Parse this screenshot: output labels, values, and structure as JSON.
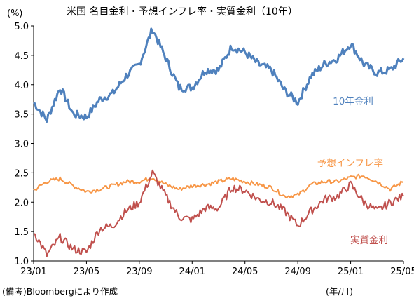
{
  "chart_data": {
    "type": "line",
    "title": "米国 名目金利・予想インフレ率・実質金利（10年）",
    "ylabel": "(%)",
    "xlabel": "(年/月)",
    "note": "(備考)Bloombergにより作成",
    "ylim": [
      1.0,
      5.0
    ],
    "yticks": [
      "1.0",
      "1.5",
      "2.0",
      "2.5",
      "3.0",
      "3.5",
      "4.0",
      "4.5",
      "5.0"
    ],
    "xticks": [
      "23/01",
      "23/05",
      "23/09",
      "24/01",
      "24/05",
      "24/09",
      "25/01",
      "25/05"
    ],
    "grid": false,
    "series": [
      {
        "name": "10年金利",
        "color": "#4f81bd",
        "x": [
          "23/01",
          "23/02",
          "23/03",
          "23/04",
          "23/05",
          "23/06",
          "23/07",
          "23/08",
          "23/09",
          "23/10",
          "23/11",
          "23/12",
          "24/01",
          "24/02",
          "24/03",
          "24/04",
          "24/05",
          "24/06",
          "24/07",
          "24/08",
          "24/09",
          "24/10",
          "24/11",
          "24/12",
          "25/01",
          "25/02",
          "25/03",
          "25/04",
          "25/05"
        ],
        "values": [
          3.7,
          3.4,
          3.95,
          3.5,
          3.45,
          3.75,
          3.85,
          4.15,
          4.35,
          4.95,
          4.45,
          3.95,
          3.95,
          4.25,
          4.25,
          4.65,
          4.55,
          4.35,
          4.25,
          3.9,
          3.7,
          4.15,
          4.35,
          4.45,
          4.7,
          4.35,
          4.2,
          4.25,
          4.45
        ]
      },
      {
        "name": "予想インフレ率",
        "color": "#f79646",
        "x": [
          "23/01",
          "23/02",
          "23/03",
          "23/04",
          "23/05",
          "23/06",
          "23/07",
          "23/08",
          "23/09",
          "23/10",
          "23/11",
          "23/12",
          "24/01",
          "24/02",
          "24/03",
          "24/04",
          "24/05",
          "24/06",
          "24/07",
          "24/08",
          "24/09",
          "24/10",
          "24/11",
          "24/12",
          "25/01",
          "25/02",
          "25/03",
          "25/04",
          "25/05"
        ],
        "values": [
          2.2,
          2.35,
          2.4,
          2.28,
          2.18,
          2.22,
          2.28,
          2.35,
          2.35,
          2.42,
          2.3,
          2.22,
          2.28,
          2.3,
          2.35,
          2.4,
          2.35,
          2.3,
          2.25,
          2.1,
          2.12,
          2.3,
          2.35,
          2.35,
          2.42,
          2.45,
          2.35,
          2.22,
          2.35
        ]
      },
      {
        "name": "実質金利",
        "color": "#c0504d",
        "x": [
          "23/01",
          "23/02",
          "23/03",
          "23/04",
          "23/05",
          "23/06",
          "23/07",
          "23/08",
          "23/09",
          "23/10",
          "23/11",
          "23/12",
          "24/01",
          "24/02",
          "24/03",
          "24/04",
          "24/05",
          "24/06",
          "24/07",
          "24/08",
          "24/09",
          "24/10",
          "24/11",
          "24/12",
          "25/01",
          "25/02",
          "25/03",
          "25/04",
          "25/05"
        ],
        "values": [
          1.5,
          1.1,
          1.4,
          1.2,
          1.15,
          1.55,
          1.6,
          1.85,
          2.0,
          2.5,
          2.1,
          1.75,
          1.7,
          1.9,
          1.9,
          2.25,
          2.2,
          2.05,
          2.0,
          1.85,
          1.6,
          1.85,
          2.05,
          2.1,
          2.3,
          2.0,
          1.85,
          2.0,
          2.1
        ]
      }
    ]
  }
}
